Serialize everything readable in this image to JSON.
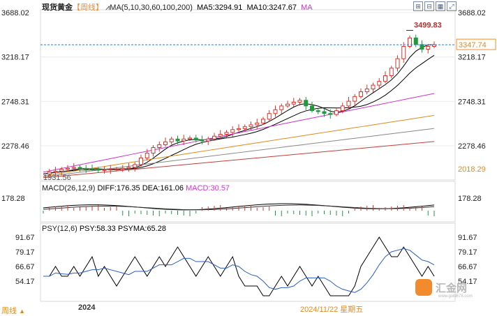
{
  "header": {
    "instrument": "现货黄金",
    "period_bracket": "【周线】",
    "ma_label": "MA(5,10,30,60,100,200)",
    "ma5": "MA5:3294.91",
    "ma10": "MA10:3247.67",
    "ma_more": "MA"
  },
  "toolbar": {
    "icons": [
      "grid-plus-icon",
      "grid-minus-icon",
      "grid-icon",
      "expand-icon"
    ]
  },
  "panels": {
    "main": {
      "y_ticks": [
        "3688.02",
        "3218.17",
        "2748.31",
        "2278.46"
      ],
      "y_ticks_left": [
        "3688.02",
        "3218.17",
        "2748.31",
        "2278.46"
      ],
      "current_price": "3347.74",
      "high_label": "3499.83",
      "low_label": "1931.56",
      "bottom_right_label": "2018.29",
      "ylim": [
        1931.56,
        3688.02
      ]
    },
    "macd": {
      "label": "MACD(26,12,9)",
      "diff": "DIFF:176.35",
      "dea": "DEA:161.06",
      "macd": "MACD:30.57",
      "y_tick": "178.28"
    },
    "psy": {
      "label": "PSY(12,6)",
      "psy": "PSY:58.33",
      "psyma": "PSYMA:65.28",
      "y_ticks": [
        "91.67",
        "79.17",
        "66.67",
        "54.17"
      ]
    }
  },
  "footer": {
    "period_button": "周线",
    "period_arrow": "▲",
    "year_label": "2024",
    "date_label": "2024/11/22 星期五"
  },
  "watermark": {
    "brand": "汇金网",
    "url": "www.gold678.com"
  },
  "colors": {
    "up": "#e0332a",
    "down": "#1f9a3c",
    "ma5": "#000000",
    "ma10": "#000000",
    "ma30": "#cc33cc",
    "ma60": "#e08a1e",
    "ma100": "#888888",
    "ma200": "#c0413b",
    "dashed": "#2a7bd6",
    "price_box": "#ff8c1a",
    "macd_label": "#d633d6",
    "accent": "#b03030"
  },
  "chart_data": {
    "type": "candlestick",
    "title": "现货黄金 【周线】",
    "timeframe": "weekly",
    "x_labels": [
      "2024",
      "2024/11/22 星期五"
    ],
    "price_range": [
      1931.56,
      3688.02
    ],
    "marked_high": 3499.83,
    "marked_low": 1931.56,
    "last_price": 3347.74,
    "ma_values": {
      "MA5": 3294.91,
      "MA10": 3247.67
    },
    "price_series_approx": [
      1980,
      2000,
      2010,
      2030,
      2040,
      2050,
      2040,
      2035,
      2030,
      2020,
      2025,
      2030,
      2030,
      2040,
      2050,
      2080,
      2150,
      2200,
      2260,
      2290,
      2320,
      2350,
      2330,
      2350,
      2360,
      2340,
      2330,
      2350,
      2380,
      2400,
      2420,
      2450,
      2460,
      2480,
      2500,
      2520,
      2560,
      2620,
      2660,
      2700,
      2720,
      2740,
      2760,
      2700,
      2650,
      2640,
      2620,
      2610,
      2650,
      2700,
      2750,
      2800,
      2850,
      2880,
      2920,
      2960,
      3020,
      3100,
      3200,
      3330,
      3420,
      3350,
      3300,
      3330,
      3347.74
    ],
    "macd": {
      "DIFF": 176.35,
      "DEA": 161.06,
      "MACD": 30.57,
      "label_value": 178.28
    },
    "psy": {
      "PSY": 58.33,
      "PSYMA": 65.28,
      "ticks": [
        91.67,
        79.17,
        66.67,
        54.17
      ],
      "series_approx": [
        58.33,
        58.33,
        66.67,
        58.33,
        58.33,
        66.67,
        58.33,
        66.67,
        75,
        58.33,
        66.67,
        58.33,
        50,
        58.33,
        66.67,
        75,
        66.67,
        58.33,
        66.67,
        75,
        66.67,
        75,
        83.33,
        75,
        66.67,
        58.33,
        66.67,
        75,
        66.67,
        58.33,
        66.67,
        75,
        58.33,
        50,
        50,
        50,
        41.67,
        41.67,
        50,
        58.33,
        50,
        58.33,
        66.67,
        58.33,
        50,
        58.33,
        50,
        41.67,
        41.67,
        41.67,
        41.67,
        50,
        66.67,
        75,
        83.33,
        91.67,
        83.33,
        75,
        75,
        83.33,
        75,
        66.67,
        58.33,
        66.67,
        58.33
      ]
    }
  }
}
